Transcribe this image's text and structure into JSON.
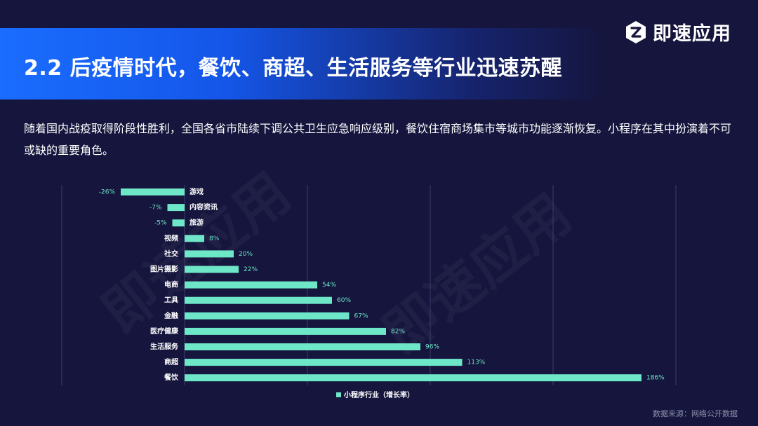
{
  "header": {
    "title": "2.2 后疫情时代，餐饮、商超、生活服务等行业迅速苏醒",
    "logo_text": "即速应用"
  },
  "description": "随着国内战疫取得阶段性胜利，全国各省市陆续下调公共卫生应急响应级别，餐饮住宿商场集市等城市功能逐渐恢复。小程序在其中扮演着不可或缺的重要角色。",
  "watermark": "即速应用",
  "source": "数据来源：网络公开数据",
  "colors": {
    "bar": "#6ee6c8",
    "label": "#6ee6c8",
    "background": "#15153d",
    "accent": "#1a6dff"
  },
  "chart_data": {
    "type": "bar",
    "orientation": "horizontal",
    "categories": [
      "游戏",
      "内容资讯",
      "旅游",
      "视频",
      "社交",
      "图片摄影",
      "电商",
      "工具",
      "金融",
      "医疗健康",
      "生活服务",
      "商超",
      "餐饮"
    ],
    "series": [
      {
        "name": "小程序行业（增长率）",
        "values": [
          -26,
          -7,
          -5,
          8,
          20,
          22,
          54,
          60,
          67,
          82,
          96,
          113,
          186
        ]
      }
    ],
    "value_labels": [
      "-26%",
      "-7%",
      "-5%",
      "8%",
      "20%",
      "22%",
      "54%",
      "60%",
      "67%",
      "82%",
      "96%",
      "113%",
      "186%"
    ],
    "xlim": [
      -50,
      200
    ],
    "grid": true,
    "legend": "bottom-center"
  }
}
